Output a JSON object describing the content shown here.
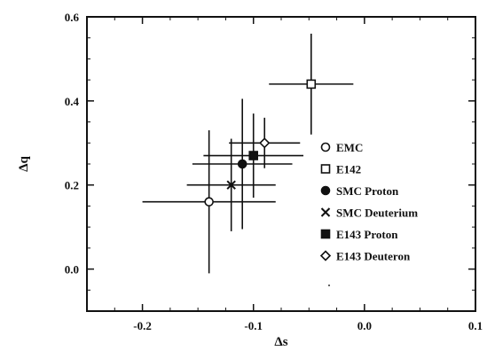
{
  "chart_data": {
    "type": "scatter",
    "xlabel": "Δs",
    "ylabel": "Δq",
    "xlim": [
      -0.25,
      0.1
    ],
    "ylim": [
      -0.1,
      0.6
    ],
    "xticks": [
      -0.2,
      -0.1,
      0.0,
      0.1
    ],
    "xtick_labels": [
      "-0.2",
      "-0.1",
      "0.0",
      "0.1"
    ],
    "yticks": [
      0.0,
      0.2,
      0.4,
      0.6
    ],
    "ytick_labels": [
      "0.0",
      "0.2",
      "0.4",
      "0.6"
    ],
    "grid": false,
    "legend_position": "right",
    "series": [
      {
        "name": "EMC",
        "marker": "open-circle",
        "x": -0.14,
        "y": 0.16,
        "x_err": 0.06,
        "y_err": 0.17
      },
      {
        "name": "E142",
        "marker": "open-square",
        "x": -0.048,
        "y": 0.44,
        "x_err": 0.038,
        "y_err": 0.12
      },
      {
        "name": "SMC Proton",
        "marker": "filled-circle",
        "x": -0.11,
        "y": 0.25,
        "x_err": 0.045,
        "y_err": 0.155
      },
      {
        "name": "SMC Deuterium",
        "marker": "x",
        "x": -0.12,
        "y": 0.2,
        "x_err": 0.04,
        "y_err": 0.11
      },
      {
        "name": "E143 Proton",
        "marker": "filled-square",
        "x": -0.1,
        "y": 0.27,
        "x_err": 0.045,
        "y_err": 0.1
      },
      {
        "name": "E143 Deuteron",
        "marker": "open-diamond",
        "x": -0.09,
        "y": 0.3,
        "x_err": 0.032,
        "y_err": 0.06
      }
    ]
  }
}
